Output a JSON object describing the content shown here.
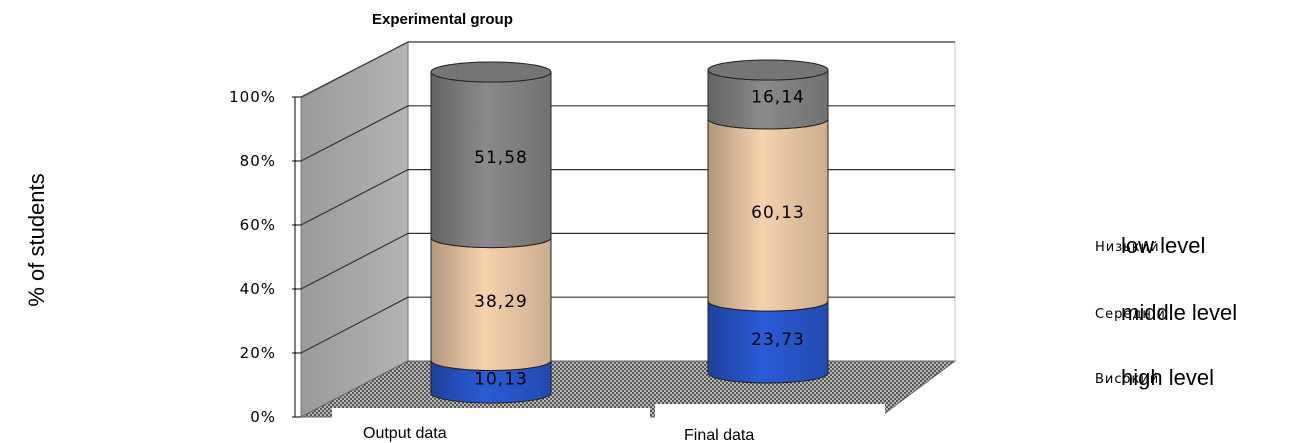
{
  "chart_data": {
    "type": "bar",
    "subtype": "stacked-100-percent-3d-cylinder",
    "title": "Experimental group",
    "ylabel": "% of students",
    "xlabel": "",
    "ylim": [
      0,
      100
    ],
    "yticks": [
      "0%",
      "20%",
      "40%",
      "60%",
      "80%",
      "100%"
    ],
    "categories": [
      "Output data",
      "Final data"
    ],
    "series": [
      {
        "name": "high level",
        "underlying_label": "Високий",
        "values": [
          10.13,
          23.73
        ],
        "labels": [
          "10,13",
          "23,73"
        ],
        "color": "#2a5bd7"
      },
      {
        "name": "middle level",
        "underlying_label": "Середній",
        "values": [
          38.29,
          60.13
        ],
        "labels": [
          "38,29",
          "60,13"
        ],
        "color": "#f6d2ad"
      },
      {
        "name": "low level",
        "underlying_label": "Низький",
        "values": [
          51.58,
          16.14
        ],
        "labels": [
          "51,58",
          "16,14"
        ],
        "color": "#8a8a8a"
      }
    ],
    "grid": true,
    "legend_position": "right",
    "floor_pattern": "checkered"
  }
}
